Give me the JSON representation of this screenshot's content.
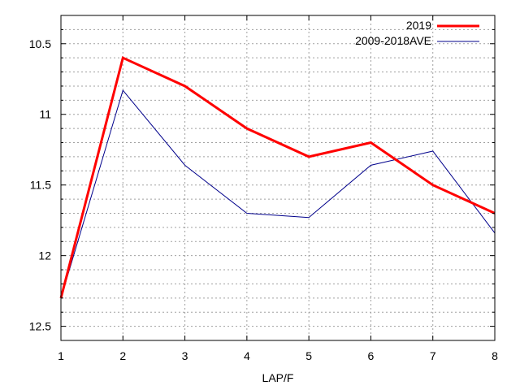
{
  "chart_data": {
    "type": "line",
    "title": "",
    "xlabel": "LAP/F",
    "ylabel": "",
    "x": [
      1,
      2,
      3,
      4,
      5,
      6,
      7,
      8
    ],
    "xlim": [
      1,
      8
    ],
    "ylim": [
      10.3,
      12.6
    ],
    "y_inverted": true,
    "y_ticks": [
      10.5,
      11,
      11.5,
      12,
      12.5
    ],
    "y_tick_labels": [
      "10.5",
      "11",
      "11.5",
      "12",
      "12.5"
    ],
    "x_tick_labels": [
      "1",
      "2",
      "3",
      "4",
      "5",
      "6",
      "7",
      "8"
    ],
    "grid": true,
    "legend_position": "top-right",
    "series": [
      {
        "name": "2019",
        "color": "#ff0000",
        "values": [
          12.3,
          10.6,
          10.8,
          11.1,
          11.3,
          11.2,
          11.5,
          11.7
        ]
      },
      {
        "name": "2009-2018AVE",
        "color": "#00008b",
        "values": [
          12.3,
          10.83,
          11.36,
          11.7,
          11.73,
          11.36,
          11.26,
          11.84
        ]
      }
    ]
  }
}
